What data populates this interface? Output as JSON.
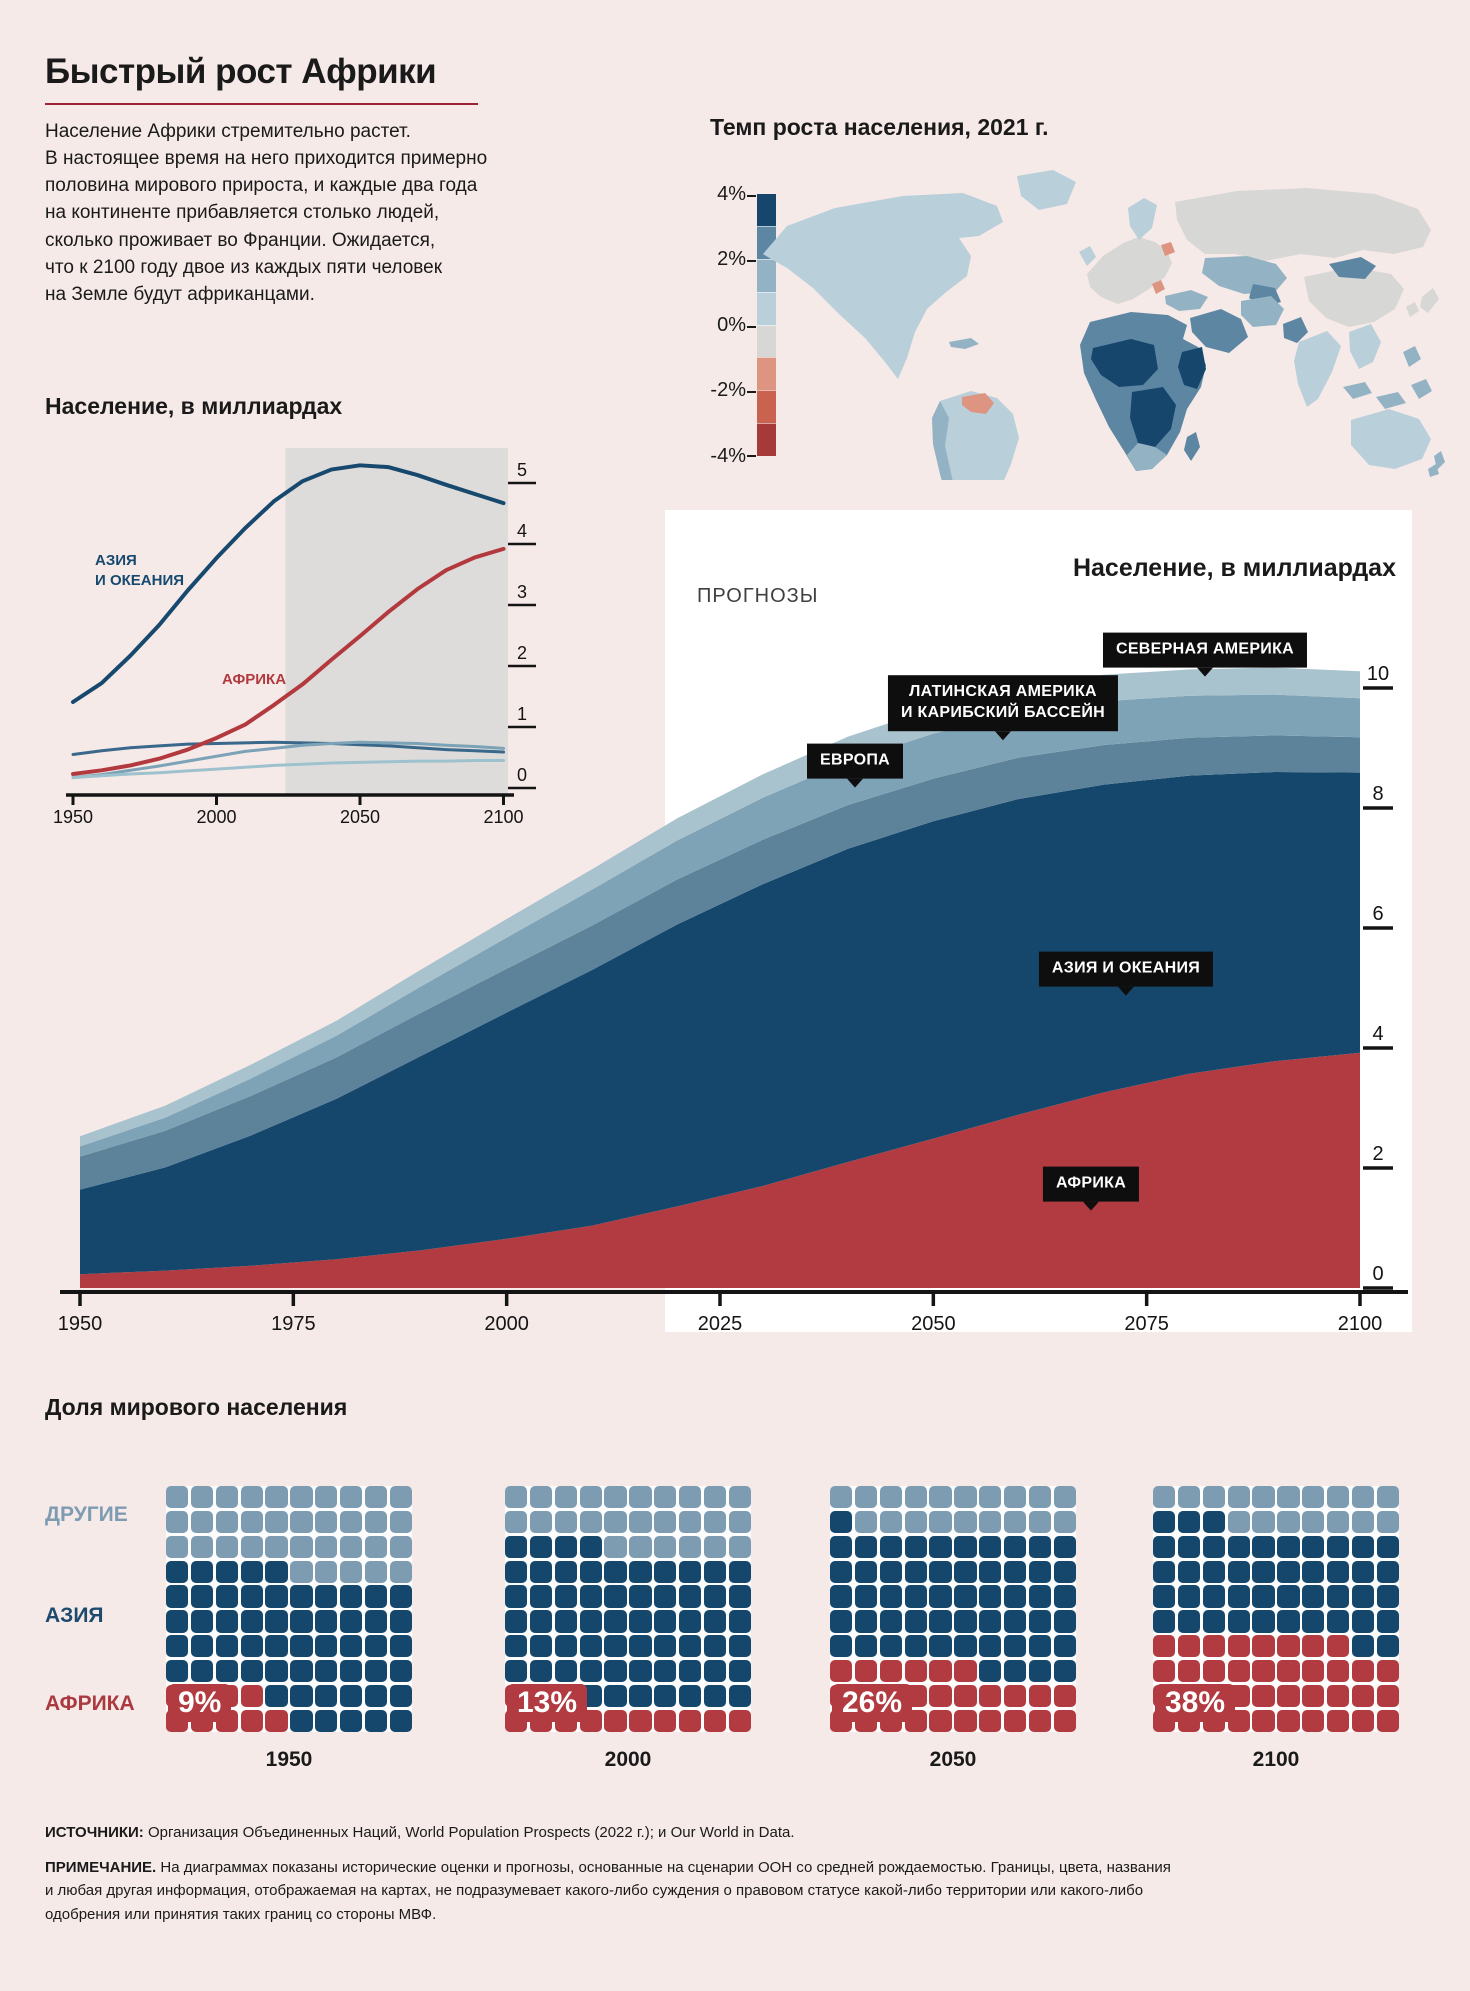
{
  "colors": {
    "background": "#f6eae8",
    "accent_line": "#9d2235",
    "text": "#1a1a1a",
    "forecast_band": "#dedcda",
    "panel_white": "#ffffff",
    "chip_black": "#0e0e0e",
    "axis": "#141414"
  },
  "header": {
    "title": "Быстрый рост Африки",
    "intro": "Население Африки стремительно растет.\nВ настоящее время на него приходится примерно\nполовина мирового прироста, и каждые два года\nна континенте прибавляется столько людей,\nсколько проживает во Франции. Ожидается,\nчто к 2100 году двое из каждых пяти человек\nна Земле будут африканцами."
  },
  "small_chart": {
    "title": "Население, в миллиардах"
  },
  "big_chart_chips": [
    {
      "text": "СЕВЕРНАЯ АМЕРИКА"
    },
    {
      "text": "ЛАТИНСКАЯ АМЕРИКА",
      "text2": "И КАРИБСКИЙ БАССЕЙН"
    },
    {
      "text": "ЕВРОПА"
    },
    {
      "text": "АЗИЯ И ОКЕАНИЯ"
    },
    {
      "text": "АФРИКА"
    }
  ],
  "footer": {
    "sources_label": "ИСТОЧНИКИ:",
    "sources_text": " Организация Объединенных Наций, World Population Prospects (2022 г.); и Our World in Data.",
    "note_label": "ПРИМЕЧАНИЕ.",
    "note_text": " На диаграммах показаны исторические оценки и прогнозы, основанные на сценарии ООН со средней рождаемостью. Границы, цвета, названия\nи любая другая информация, отображаемая на картах, не подразумевает какого-либо суждения о правовом статусе какой-либо территории или какого-либо\nодобрения или принятия таких границ со стороны МВФ."
  },
  "chart_data": {
    "population_by_region": {
      "type": "area",
      "title": "Население, в миллиардах",
      "x": [
        1950,
        1960,
        1970,
        1980,
        1990,
        2000,
        2010,
        2020,
        2030,
        2040,
        2050,
        2060,
        2070,
        2080,
        2090,
        2100
      ],
      "series": [
        {
          "name": "АФРИКА",
          "key": "africa",
          "color": "#b13b40",
          "line_color": "#b23a3f",
          "values": [
            0.23,
            0.29,
            0.37,
            0.48,
            0.63,
            0.82,
            1.04,
            1.36,
            1.7,
            2.1,
            2.49,
            2.89,
            3.26,
            3.57,
            3.78,
            3.92
          ]
        },
        {
          "name": "АЗИЯ И ОКЕАНИЯ",
          "key": "asia_oceania",
          "color": "#14476b",
          "line_color": "#17496e",
          "values": [
            1.41,
            1.72,
            2.17,
            2.67,
            3.24,
            3.77,
            4.26,
            4.7,
            5.03,
            5.22,
            5.29,
            5.26,
            5.13,
            4.97,
            4.82,
            4.67
          ]
        },
        {
          "name": "ЕВРОПА",
          "key": "europe",
          "color": "#5d839b",
          "line_color": "#3a688a",
          "values": [
            0.55,
            0.61,
            0.66,
            0.69,
            0.72,
            0.73,
            0.74,
            0.75,
            0.74,
            0.73,
            0.71,
            0.69,
            0.66,
            0.63,
            0.61,
            0.59
          ]
        },
        {
          "name": "ЛАТИНСКАЯ АМЕРИКА И КАРИБСКИЙ БАССЕЙН",
          "key": "latin_america",
          "color": "#7fa3b6",
          "line_color": "#7ba2b6",
          "values": [
            0.17,
            0.22,
            0.29,
            0.36,
            0.44,
            0.52,
            0.6,
            0.65,
            0.7,
            0.73,
            0.75,
            0.74,
            0.73,
            0.7,
            0.68,
            0.65
          ]
        },
        {
          "name": "СЕВЕРНАЯ АМЕРИКА",
          "key": "north_america",
          "color": "#a9c3ce",
          "line_color": "#9ec2cd",
          "values": [
            0.17,
            0.2,
            0.23,
            0.25,
            0.28,
            0.31,
            0.34,
            0.37,
            0.39,
            0.41,
            0.42,
            0.43,
            0.44,
            0.44,
            0.45,
            0.45
          ]
        }
      ],
      "small_chart": {
        "ylim": [
          0,
          5
        ],
        "y_ticks": [
          "0",
          "1",
          "2",
          "3",
          "4",
          "5"
        ],
        "x_ticks": [
          "1950",
          "2000",
          "2050",
          "2100"
        ],
        "forecast_start_year": 2024,
        "asia_label_line1": "АЗИЯ",
        "asia_label_line2": "И ОКЕАНИЯ",
        "africa_label": "АФРИКА"
      },
      "big_chart": {
        "ylim": [
          0,
          10
        ],
        "y_ticks": [
          "0",
          "2",
          "4",
          "6",
          "8",
          "10"
        ],
        "x_ticks": [
          "1950",
          "1975",
          "2000",
          "2025",
          "2050",
          "2075",
          "2100"
        ],
        "forecast_start_year": 2019,
        "forecast_label": "ПРОГНОЗЫ"
      }
    },
    "world_share_waffles": {
      "type": "waffle",
      "title": "Доля мирового населения",
      "legend": [
        {
          "label": "ДРУГИЕ",
          "color": "#7d9cb2"
        },
        {
          "label": "АЗИЯ",
          "color": "#1d4a6d"
        },
        {
          "label": "АФРИКА",
          "color": "#ab3a40"
        }
      ],
      "cell_colors": {
        "o": "#7d9cb2",
        "a": "#14476b",
        "r": "#b13b40"
      },
      "years": [
        {
          "year": "1950",
          "africa_share": "9%",
          "rows": [
            "oooooooooo",
            "oooooooooo",
            "oooooooooo",
            "aaaaaooooo",
            "aaaaaaaaaa",
            "aaaaaaaaaa",
            "aaaaaaaaaa",
            "aaaaaaaaaa",
            "rrrraaaaaa",
            "rrrrraaaaa"
          ]
        },
        {
          "year": "2000",
          "africa_share": "13%",
          "rows": [
            "oooooooooo",
            "oooooooooo",
            "aaaaoooooo",
            "aaaaaaaaaa",
            "aaaaaaaaaa",
            "aaaaaaaaaa",
            "aaaaaaaaaa",
            "aaaaaaaaaa",
            "rrraaaaaaa",
            "rrrrrrrrrr"
          ]
        },
        {
          "year": "2050",
          "africa_share": "26%",
          "rows": [
            "oooooooooo",
            "aooooooooo",
            "aaaaaaaaaa",
            "aaaaaaaaaa",
            "aaaaaaaaaa",
            "aaaaaaaaaa",
            "aaaaaaaaaa",
            "rrrrrraaaa",
            "rrrrrrrrrr",
            "rrrrrrrrrr"
          ]
        },
        {
          "year": "2100",
          "africa_share": "38%",
          "rows": [
            "oooooooooo",
            "aaaooooooo",
            "aaaaaaaaaa",
            "aaaaaaaaaa",
            "aaaaaaaaaa",
            "aaaaaaaaaa",
            "rrrrrrrraa",
            "rrrrrrrrrr",
            "rrrrrrrrrr",
            "rrrrrrrrrr"
          ]
        }
      ]
    },
    "growth_map": {
      "type": "choropleth",
      "title": "Темп роста населения, 2021 г.",
      "legend_tick_labels": [
        "4%",
        "2%",
        "0%",
        "-2%",
        "-4%"
      ],
      "bucket_colors": [
        "#16466b",
        "#5d86a3",
        "#93b3c4",
        "#b9cfd9",
        "#d7d7d5",
        "#dd9480",
        "#ca6250",
        "#a63a38"
      ],
      "region_buckets": {
        "north-america": 3,
        "caribbean": 2,
        "greenland": 3,
        "south-america": 3,
        "sa-west": 2,
        "sa-south": 2,
        "venezuela": 5,
        "europe": 4,
        "scandinavia": 3,
        "uk": 3,
        "baltic": 5,
        "balkan": 5,
        "russia": 4,
        "central-asia": 2,
        "uzbekistan": 1,
        "turkey": 2,
        "gulf": 1,
        "iran": 2,
        "africa-base": 1,
        "west-africa": 0,
        "central-africa": 0,
        "horn-africa": 0,
        "southern-africa": 2,
        "madagascar": 1,
        "pakistan": 1,
        "india": 3,
        "china": 4,
        "mongolia": 1,
        "indochina": 3,
        "indonesia": 2,
        "philippines": 2,
        "japan": 4,
        "korea": 4,
        "australia": 3,
        "new-zealand": 2
      }
    }
  }
}
